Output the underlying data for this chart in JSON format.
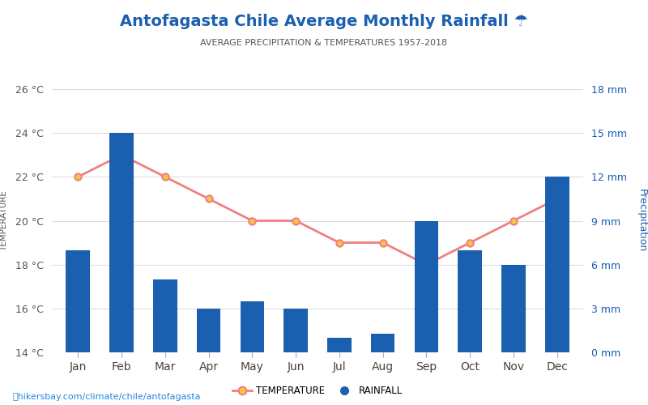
{
  "title": "Antofagasta Chile Average Monthly Rainfall ☂",
  "subtitle": "AVERAGE PRECIPITATION & TEMPERATURES 1957-2018",
  "months": [
    "Jan",
    "Feb",
    "Mar",
    "Apr",
    "May",
    "Jun",
    "Jul",
    "Aug",
    "Sep",
    "Oct",
    "Nov",
    "Dec"
  ],
  "temperature": [
    22,
    23,
    22,
    21,
    20,
    20,
    19,
    19,
    18,
    19,
    20,
    21
  ],
  "rainfall_mm": [
    7,
    15,
    5,
    3,
    3.5,
    3,
    1,
    1.3,
    9,
    7,
    6,
    12
  ],
  "temp_ylim": [
    14,
    26
  ],
  "precip_ylim": [
    0,
    18
  ],
  "temp_yticks": [
    14,
    16,
    18,
    20,
    22,
    24,
    26
  ],
  "precip_yticks": [
    0,
    3,
    6,
    9,
    12,
    15,
    18
  ],
  "bar_color": "#1a5fb0",
  "line_color": "#f08080",
  "marker_face": "#f5c842",
  "marker_edge": "#f08080",
  "title_color": "#1a5fb0",
  "subtitle_color": "#555555",
  "left_axis_color": "#555555",
  "right_axis_color": "#1a5fb0",
  "bg_color": "#ffffff",
  "grid_color": "#dddddd",
  "watermark": "hikersbay.com/climate/chile/antofagasta",
  "legend_temp_label": "TEMPERATURE",
  "legend_rain_label": "RAINFALL"
}
